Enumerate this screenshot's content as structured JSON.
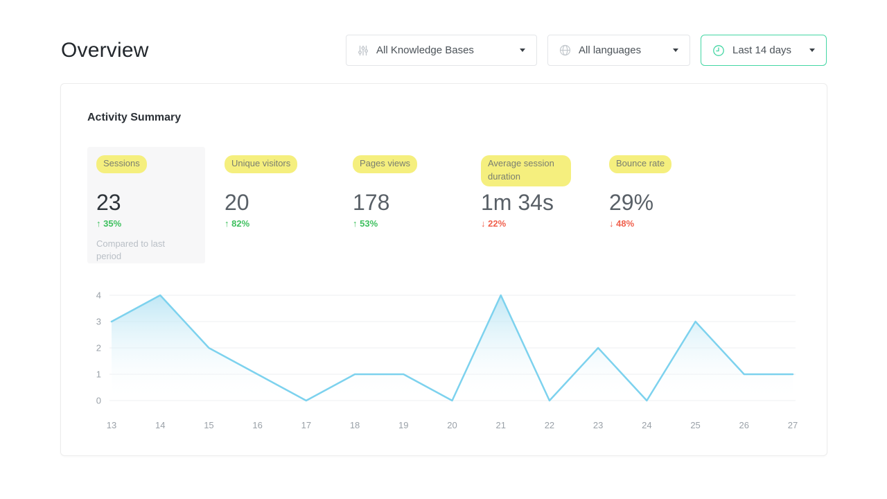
{
  "page": {
    "title": "Overview"
  },
  "filters": [
    {
      "label": "All Knowledge Bases",
      "icon": "sliders-icon"
    },
    {
      "label": "All languages",
      "icon": "globe-icon"
    },
    {
      "label": "Last 14 days",
      "icon": "clock-icon"
    }
  ],
  "activity": {
    "title": "Activity Summary",
    "metrics": [
      {
        "label": "Sessions",
        "value": "23",
        "arrow": "↑",
        "change": "35%",
        "direction": "up",
        "note": "Compared to last period",
        "selected": true
      },
      {
        "label": "Unique visitors",
        "value": "20",
        "arrow": "↑",
        "change": "82%",
        "direction": "up"
      },
      {
        "label": "Pages views",
        "value": "178",
        "arrow": "↑",
        "change": "53%",
        "direction": "up"
      },
      {
        "label": "Average session duration",
        "value": "1m 34s",
        "arrow": "↓",
        "change": "22%",
        "direction": "down"
      },
      {
        "label": "Bounce rate",
        "value": "29%",
        "arrow": "↓",
        "change": "48%",
        "direction": "down"
      }
    ]
  },
  "chart_data": {
    "type": "area",
    "title": "",
    "xlabel": "",
    "ylabel": "",
    "x": [
      "13",
      "14",
      "15",
      "16",
      "17",
      "18",
      "19",
      "20",
      "21",
      "22",
      "23",
      "24",
      "25",
      "26",
      "27"
    ],
    "values": [
      3,
      4,
      2,
      1,
      0,
      1,
      1,
      0,
      4,
      0,
      2,
      0,
      3,
      1,
      1
    ],
    "ylim": [
      0,
      4
    ],
    "yticks": [
      0,
      1,
      2,
      3,
      4
    ],
    "grid": true,
    "legend": "none",
    "line_color": "#7dd2ee",
    "fill_top_color": "#b5e3f3",
    "axis_label_color": "#9aa1a8"
  },
  "colors": {
    "date_range_accent": "#43d6a3",
    "highlight_yellow": "#f5ef7e",
    "trend_up_green": "#3fc05f",
    "trend_down_red": "#f0604d",
    "chart_line": "#7dd2ee"
  }
}
